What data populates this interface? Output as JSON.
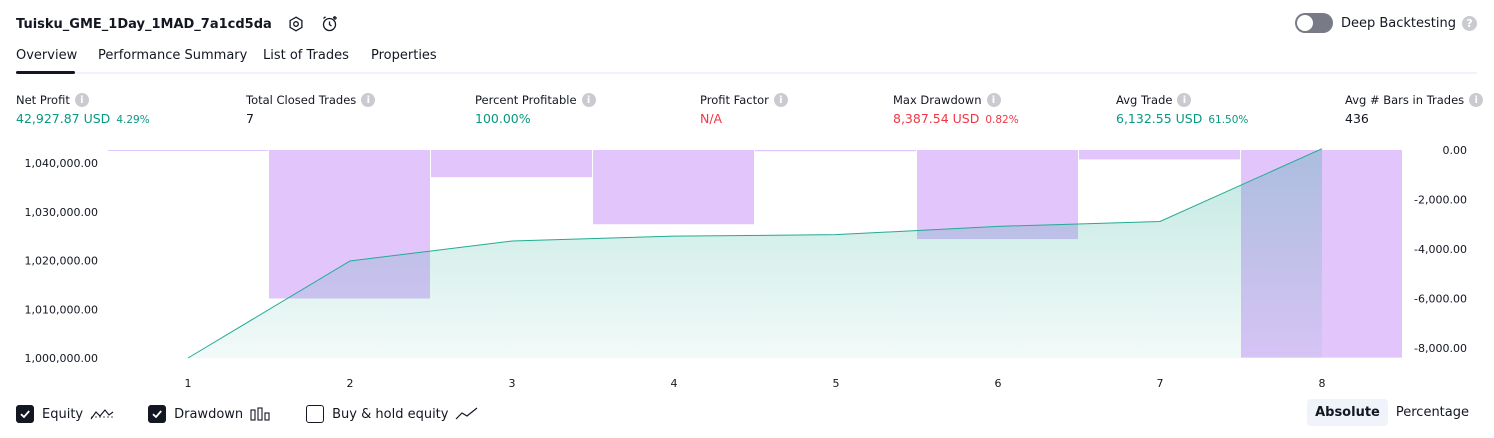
{
  "header": {
    "title": "Tuisku_GME_1Day_1MAD_7a1cd5da",
    "deep_backtesting_label": "Deep Backtesting",
    "help_glyph": "?"
  },
  "tabs": [
    {
      "label": "Overview",
      "active": true
    },
    {
      "label": "Performance Summary",
      "active": false
    },
    {
      "label": "List of Trades",
      "active": false
    },
    {
      "label": "Properties",
      "active": false
    }
  ],
  "stats": {
    "info_glyph": "i",
    "net_profit": {
      "label": "Net Profit",
      "value": "42,927.87 USD",
      "pct": "4.29%"
    },
    "total_closed_trades": {
      "label": "Total Closed Trades",
      "value": "7"
    },
    "percent_profitable": {
      "label": "Percent Profitable",
      "value": "100.00%"
    },
    "profit_factor": {
      "label": "Profit Factor",
      "value": "N/A"
    },
    "max_drawdown": {
      "label": "Max Drawdown",
      "value": "8,387.54 USD",
      "pct": "0.82%"
    },
    "avg_trade": {
      "label": "Avg Trade",
      "value": "6,132.55 USD",
      "pct": "61.50%"
    },
    "avg_bars": {
      "label": "Avg # Bars in Trades",
      "value": "436"
    }
  },
  "colors": {
    "green": "#089981",
    "red": "#f23645",
    "equity_line": "#22ab94",
    "drawdown_fill": "#e1c5fb"
  },
  "chart_data": {
    "type": "line",
    "x": [
      1,
      2,
      3,
      4,
      5,
      6,
      7,
      8
    ],
    "left_axis": {
      "ticks": [
        "1,040,000.00",
        "1,030,000.00",
        "1,020,000.00",
        "1,010,000.00",
        "1,000,000.00"
      ],
      "tick_values": [
        1040000,
        1030000,
        1020000,
        1010000,
        1000000
      ],
      "ylim": [
        1000000,
        1042000
      ]
    },
    "right_axis": {
      "ticks": [
        "0.00",
        "-2,000.00",
        "-4,000.00",
        "-6,000.00",
        "-8,000.00"
      ],
      "tick_values": [
        0,
        -2000,
        -4000,
        -6000,
        -8000
      ],
      "ylim": [
        -8387.54,
        0
      ]
    },
    "series": [
      {
        "name": "Equity",
        "kind": "area-line",
        "axis": "left",
        "values": [
          1000000,
          1019900,
          1024000,
          1025000,
          1025300,
          1027000,
          1028000,
          1042927.87
        ]
      },
      {
        "name": "Drawdown",
        "kind": "bar",
        "axis": "right",
        "values": [
          0,
          -6000,
          -1100,
          -3000,
          -50,
          -3600,
          -380,
          -8387.54
        ]
      }
    ]
  },
  "legend": {
    "items": [
      {
        "label": "Equity",
        "checked": true,
        "icon": "equity-line-icon"
      },
      {
        "label": "Drawdown",
        "checked": true,
        "icon": "drawdown-bars-icon"
      },
      {
        "label": "Buy & hold equity",
        "checked": false,
        "icon": "buy-hold-line-icon"
      }
    ]
  },
  "scale": {
    "options": [
      "Absolute",
      "Percentage"
    ],
    "selected": "Absolute"
  }
}
